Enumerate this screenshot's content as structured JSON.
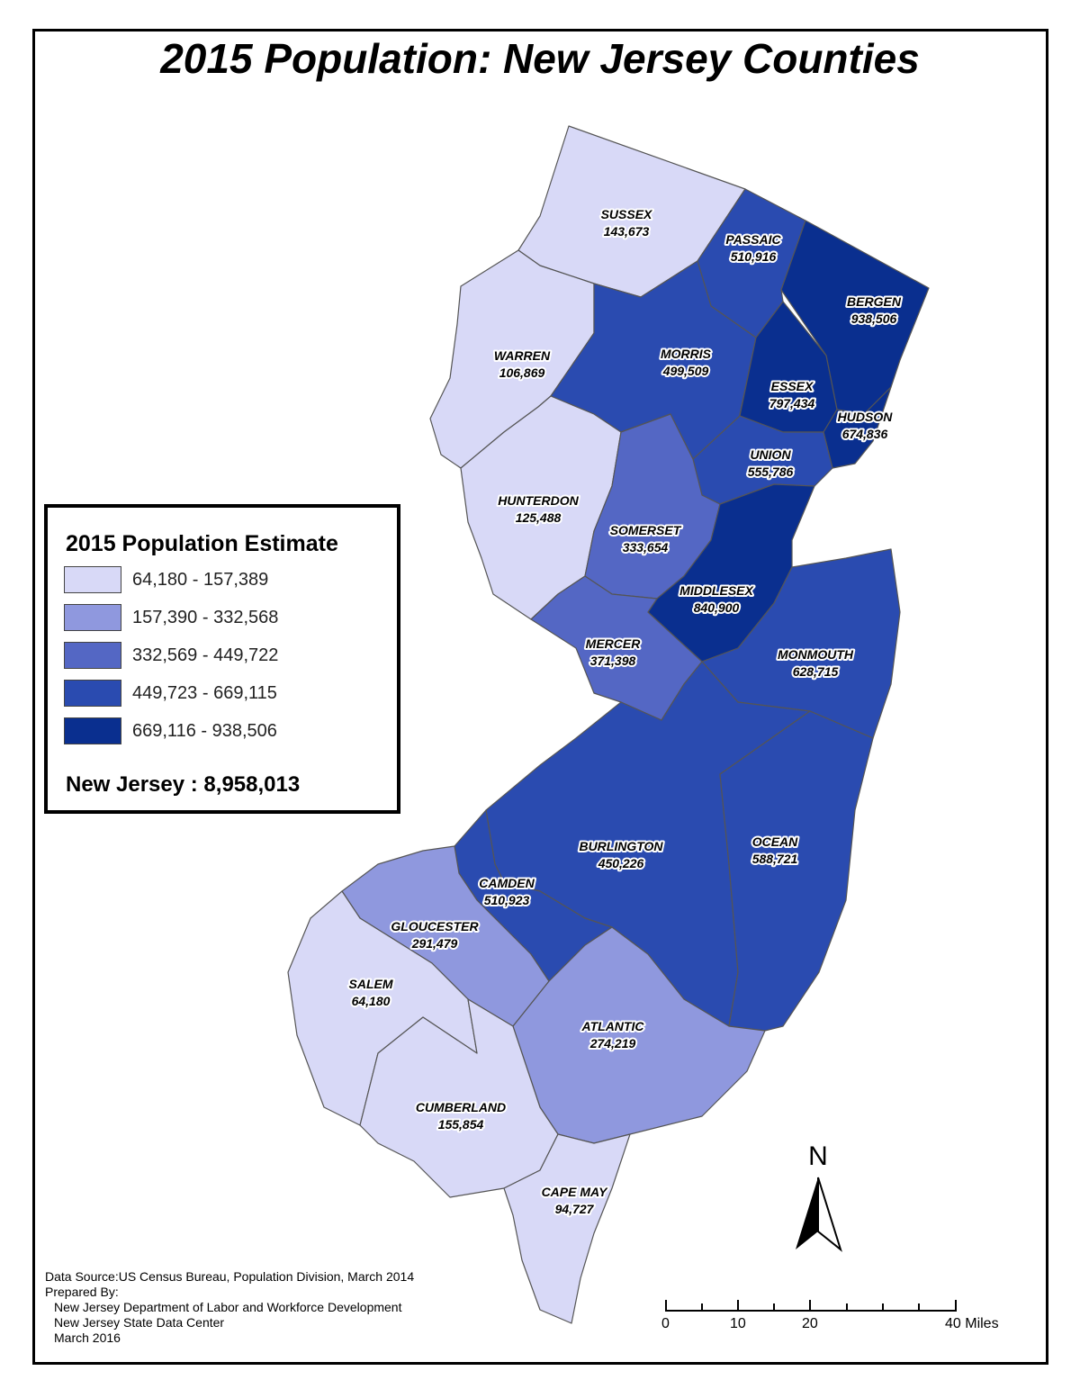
{
  "title": "2015 Population: New Jersey Counties",
  "colors": {
    "class1": "#d8d9f7",
    "class2": "#8f98de",
    "class3": "#5467c4",
    "class4": "#2a4bb0",
    "class5": "#0a2f8f",
    "border": "#555555"
  },
  "counties": {
    "sussex": {
      "name": "SUSSEX",
      "population": "143,673"
    },
    "passaic": {
      "name": "PASSAIC",
      "population": "510,916"
    },
    "bergen": {
      "name": "BERGEN",
      "population": "938,506"
    },
    "warren": {
      "name": "WARREN",
      "population": "106,869"
    },
    "morris": {
      "name": "MORRIS",
      "population": "499,509"
    },
    "essex": {
      "name": "ESSEX",
      "population": "797,434"
    },
    "hudson": {
      "name": "HUDSON",
      "population": "674,836"
    },
    "union": {
      "name": "UNION",
      "population": "555,786"
    },
    "hunterdon": {
      "name": "HUNTERDON",
      "population": "125,488"
    },
    "somerset": {
      "name": "SOMERSET",
      "population": "333,654"
    },
    "middlesex": {
      "name": "MIDDLESEX",
      "population": "840,900"
    },
    "mercer": {
      "name": "MERCER",
      "population": "371,398"
    },
    "monmouth": {
      "name": "MONMOUTH",
      "population": "628,715"
    },
    "burlington": {
      "name": "BURLINGTON",
      "population": "450,226"
    },
    "ocean": {
      "name": "OCEAN",
      "population": "588,721"
    },
    "camden": {
      "name": "CAMDEN",
      "population": "510,923"
    },
    "gloucester": {
      "name": "GLOUCESTER",
      "population": "291,479"
    },
    "salem": {
      "name": "SALEM",
      "population": "64,180"
    },
    "atlantic": {
      "name": "ATLANTIC",
      "population": "274,219"
    },
    "cumberland": {
      "name": "CUMBERLAND",
      "population": "155,854"
    },
    "capemay": {
      "name": "CAPE MAY",
      "population": "94,727"
    }
  },
  "legend": {
    "title": "2015 Population Estimate",
    "classes": [
      "64,180 - 157,389",
      "157,390 - 332,568",
      "332,569 - 449,722",
      "449,723 - 669,115",
      "669,116 - 938,506"
    ],
    "total": "New Jersey : 8,958,013"
  },
  "credits": {
    "source": "Data Source:US Census Bureau, Population Division, March 2014",
    "prepared": "Prepared By:",
    "org1": "New Jersey Department of Labor and Workforce Development",
    "org2": "New Jersey State Data Center",
    "date": "March 2016"
  },
  "north_arrow": {
    "label": "N"
  },
  "scale_bar": {
    "labels": [
      "0",
      "10",
      "20",
      "40 Miles"
    ]
  }
}
